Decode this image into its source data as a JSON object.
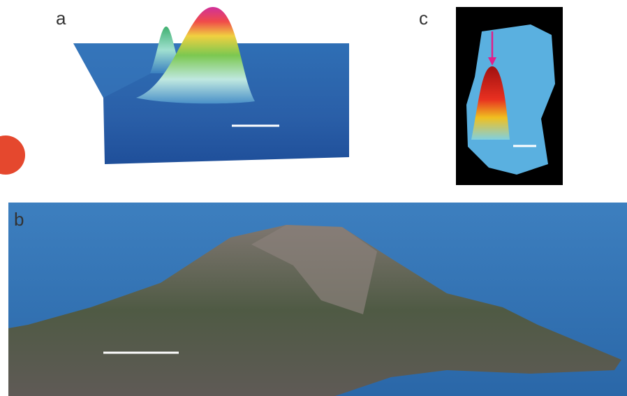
{
  "panels": [
    {
      "label": "a"
    },
    {
      "label": "c"
    },
    {
      "label": "b"
    }
  ]
}
